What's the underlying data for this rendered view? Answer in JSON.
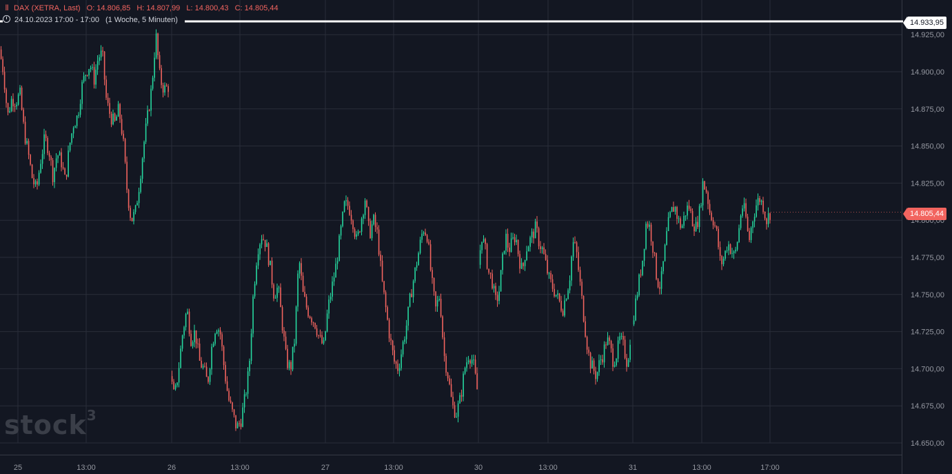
{
  "header": {
    "symbol_line": "DAX (XETRA, Last)",
    "open": "O: 14.806,85",
    "high": "H: 14.807,99",
    "low": "L: 14.800,43",
    "close": "C: 14.805,44",
    "period_line": "24.10.2023 17:00 - 17:00",
    "range_line": "(1 Woche, 5 Minuten)"
  },
  "tags": {
    "high_price": "14.933,95",
    "last_price": "14.805,44"
  },
  "watermark": {
    "text": "stock",
    "sup": "3"
  },
  "colors": {
    "background": "#131722",
    "up": "#26d9a0",
    "down": "#f2645f",
    "grid": "#2a2e39",
    "axis_text": "#9598a1",
    "high_line": "#ffffff"
  },
  "chart_data": {
    "type": "candlestick",
    "y_range": [
      14642,
      14940
    ],
    "y_ticks": [
      {
        "value": 14925,
        "label": "14.925,00"
      },
      {
        "value": 14900,
        "label": "14.900,00"
      },
      {
        "value": 14875,
        "label": "14.875,00"
      },
      {
        "value": 14850,
        "label": "14.850,00"
      },
      {
        "value": 14825,
        "label": "14.825,00"
      },
      {
        "value": 14800,
        "label": "14.800,00"
      },
      {
        "value": 14775,
        "label": "14.775,00"
      },
      {
        "value": 14750,
        "label": "14.750,00"
      },
      {
        "value": 14725,
        "label": "14.725,00"
      },
      {
        "value": 14700,
        "label": "14.700,00"
      },
      {
        "value": 14675,
        "label": "14.675,00"
      },
      {
        "value": 14650,
        "label": "14.650,00"
      }
    ],
    "x_ticks": [
      "25",
      "13:00",
      "26",
      "13:00",
      "27",
      "13:00",
      "30",
      "13:00",
      "31",
      "13:00",
      "17:00"
    ],
    "high_line_value": 14933.95,
    "last_value": 14805.44,
    "sessions": [
      {
        "label": "24/25",
        "path": [
          14915,
          14900,
          14870,
          14882,
          14880,
          14885,
          14860,
          14845,
          14828,
          14820,
          14840,
          14855,
          14848,
          14830,
          14845,
          14840,
          14826,
          14850,
          14865,
          14870,
          14890,
          14900,
          14905,
          14895,
          14910,
          14912,
          14880,
          14870,
          14865,
          14875,
          14855,
          14820,
          14800,
          14805,
          14825,
          14850,
          14870,
          14890,
          14925,
          14895,
          14888,
          14890
        ]
      },
      {
        "label": "26",
        "path": [
          14695,
          14680,
          14700,
          14725,
          14740,
          14720,
          14725,
          14705,
          14700,
          14690,
          14715,
          14730,
          14725,
          14700,
          14680,
          14670,
          14660,
          14665,
          14680,
          14700,
          14750,
          14780,
          14790,
          14785,
          14770,
          14750,
          14755,
          14730,
          14705,
          14700,
          14720,
          14775,
          14750,
          14740,
          14735,
          14730,
          14720,
          14715,
          14740,
          14755,
          14770,
          14790,
          14810,
          14810,
          14800,
          14785,
          14800,
          14815,
          14790,
          14800,
          14790,
          14760,
          14740,
          14720,
          14705,
          14700,
          14715,
          14730,
          14750,
          14765,
          14780,
          14795,
          14790,
          14760,
          14740,
          14750,
          14710,
          14695,
          14675,
          14670,
          14680,
          14700,
          14710,
          14705,
          14686
        ]
      },
      {
        "label": "30",
        "path": [
          14770,
          14790,
          14780,
          14765,
          14760,
          14745,
          14750,
          14770,
          14790,
          14780,
          14785,
          14790,
          14775,
          14765,
          14780,
          14785,
          14790,
          14795,
          14785,
          14780,
          14770,
          14760,
          14755,
          14750,
          14745,
          14740,
          14750,
          14760,
          14785,
          14780,
          14760,
          14740,
          14720,
          14705,
          14700,
          14695,
          14705,
          14710,
          14720,
          14715,
          14705,
          14710,
          14720,
          14715,
          14705,
          14715
        ]
      },
      {
        "label": "31",
        "path": [
          14730,
          14745,
          14760,
          14775,
          14800,
          14795,
          14780,
          14760,
          14755,
          14775,
          14795,
          14805,
          14810,
          14800,
          14795,
          14805,
          14810,
          14800,
          14795,
          14805,
          14825,
          14820,
          14805,
          14800,
          14790,
          14770,
          14775,
          14785,
          14780,
          14775,
          14790,
          14810,
          14805,
          14785,
          14800,
          14810,
          14815,
          14810,
          14800,
          14805
        ]
      }
    ]
  }
}
